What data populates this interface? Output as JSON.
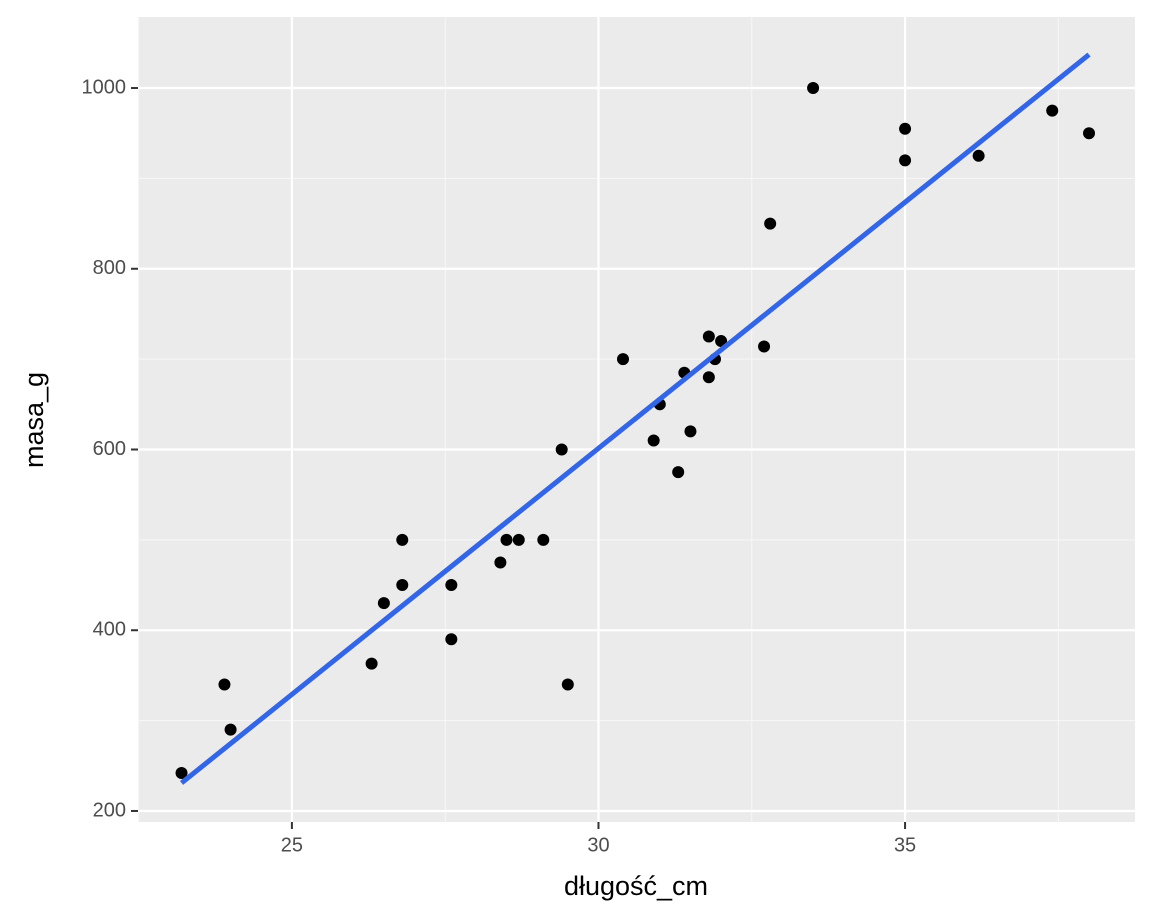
{
  "chart_data": {
    "type": "scatter",
    "x_label": "długość_cm",
    "y_label": "masa_g",
    "series": [
      {
        "name": "points",
        "color": "#000000",
        "x": [
          23.2,
          23.9,
          24.0,
          26.3,
          26.5,
          26.8,
          26.8,
          27.6,
          27.6,
          28.4,
          28.5,
          28.7,
          29.1,
          29.4,
          29.5,
          30.4,
          30.9,
          31.0,
          31.3,
          31.4,
          31.5,
          31.8,
          31.8,
          31.9,
          32.0,
          32.7,
          32.8,
          33.5,
          35.0,
          35.0,
          36.2,
          37.4,
          38.0
        ],
        "values": [
          242,
          340,
          290,
          363,
          430,
          500,
          450,
          450,
          390,
          475,
          500,
          500,
          500,
          600,
          340,
          700,
          610,
          650,
          575,
          685,
          620,
          725,
          680,
          700,
          720,
          714,
          850,
          1000,
          955,
          920,
          925,
          975,
          950
        ]
      }
    ],
    "trend": {
      "color": "#3366e6",
      "x": [
        23.2,
        38.0
      ],
      "y": [
        231,
        1037
      ]
    },
    "xlim": [
      22.49,
      38.75
    ],
    "ylim": [
      187.8,
      1078.6
    ],
    "xticks": [
      25,
      30,
      35
    ],
    "yticks": [
      200,
      400,
      600,
      800,
      1000
    ],
    "grid": true
  }
}
